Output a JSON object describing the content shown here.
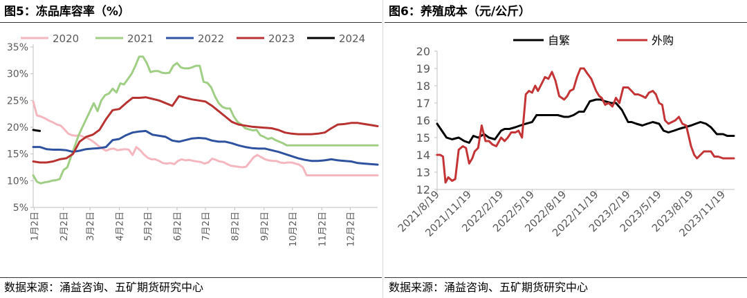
{
  "figures": [
    {
      "title": "图5：冻品库容率（%）",
      "source": "数据来源：涌益咨询、五矿期货研究中心"
    },
    {
      "title": "图6：养殖成本（元/公斤）",
      "source": "数据来源：涌益咨询、五矿期货研究中心"
    }
  ],
  "chart_data": [
    {
      "type": "line",
      "title": "图5：冻品库容率（%）",
      "x_tick_labels": [
        "1月2日",
        "2月2日",
        "3月2日",
        "4月2日",
        "5月2日",
        "6月2日",
        "7月2日",
        "8月2日",
        "9月2日",
        "10月2日",
        "11月2日",
        "12月2日"
      ],
      "y_tick_labels": [
        "5%",
        "10%",
        "15%",
        "20%",
        "25%",
        "30%",
        "35%"
      ],
      "ylim": [
        5,
        35
      ],
      "y_unit": "%",
      "grid": false,
      "legend_position": "top",
      "series": [
        {
          "name": "2020",
          "color": "#f4b6bf",
          "x": [
            1,
            5,
            9,
            13,
            18,
            22,
            26,
            30,
            34,
            38,
            42,
            46,
            50,
            54,
            58,
            62,
            66,
            70,
            74,
            78,
            82,
            86,
            90,
            94,
            98,
            102,
            106,
            110,
            114,
            118,
            122,
            126,
            130,
            134,
            138,
            142,
            146,
            150,
            154,
            158,
            162,
            166,
            170,
            174,
            178,
            182,
            186,
            190,
            194,
            198,
            202,
            206,
            210,
            214,
            218,
            222,
            226,
            230,
            234,
            238,
            242,
            246,
            250,
            254,
            258,
            262,
            266,
            270,
            274,
            278,
            282,
            286,
            290,
            294,
            298,
            302,
            306,
            310,
            314,
            318,
            322,
            326,
            330,
            334,
            338,
            342,
            346,
            350,
            354,
            358,
            362,
            365
          ],
          "values": [
            24.8,
            22.2,
            22.0,
            21.7,
            21.2,
            20.9,
            20.5,
            20.3,
            19.6,
            18.8,
            18.5,
            18.4,
            18.5,
            18.2,
            18.0,
            17.6,
            17.1,
            16.5,
            16.0,
            15.6,
            15.9,
            16.0,
            15.7,
            15.8,
            15.9,
            15.8,
            14.8,
            16.3,
            15.7,
            14.9,
            14.3,
            14.0,
            14.0,
            13.7,
            13.3,
            13.2,
            13.3,
            13.1,
            13.7,
            14.0,
            13.8,
            13.9,
            13.7,
            13.6,
            13.5,
            13.2,
            13.4,
            14.1,
            13.9,
            13.6,
            13.5,
            13.1,
            12.8,
            12.7,
            12.6,
            12.5,
            12.6,
            13.5,
            14.4,
            14.8,
            14.4,
            14.0,
            13.8,
            13.7,
            13.7,
            13.4,
            13.3,
            13.4,
            13.4,
            13.2,
            13.0,
            12.5,
            11.0,
            11.0,
            11.0,
            11.0,
            11.0,
            11.0,
            11.0,
            11.0,
            11.0,
            11.0,
            11.0,
            11.0,
            11.0,
            11.0,
            11.0,
            11.0,
            11.0,
            11.0,
            11.0,
            11.0
          ]
        },
        {
          "name": "2021",
          "color": "#9fce84",
          "x": [
            1,
            5,
            9,
            13,
            17,
            21,
            25,
            29,
            33,
            37,
            41,
            45,
            49,
            53,
            57,
            61,
            65,
            69,
            73,
            77,
            81,
            85,
            89,
            93,
            97,
            101,
            105,
            109,
            113,
            117,
            121,
            125,
            129,
            133,
            137,
            141,
            145,
            149,
            153,
            157,
            161,
            165,
            169,
            173,
            177,
            181,
            185,
            189,
            193,
            197,
            201,
            205,
            209,
            213,
            217,
            221,
            225,
            229,
            233,
            237,
            241,
            245,
            249,
            253,
            257,
            261,
            265,
            269,
            273,
            277,
            281,
            285,
            289,
            293,
            297,
            301,
            305,
            309,
            313,
            317,
            321,
            325,
            329,
            333,
            337,
            341,
            345,
            349,
            353,
            357,
            361,
            365
          ],
          "values": [
            11.0,
            9.8,
            9.5,
            9.7,
            9.8,
            10.0,
            10.1,
            10.3,
            12.0,
            12.5,
            14.5,
            16.5,
            18.5,
            20.0,
            21.5,
            23.0,
            24.5,
            23.0,
            25.0,
            26.0,
            26.3,
            27.2,
            26.5,
            28.2,
            28.0,
            29.0,
            30.0,
            31.5,
            33.2,
            33.2,
            32.0,
            30.3,
            30.5,
            30.5,
            30.2,
            30.1,
            30.2,
            31.5,
            32.0,
            31.2,
            31.0,
            31.0,
            31.2,
            31.5,
            31.5,
            28.5,
            28.3,
            27.5,
            25.8,
            24.5,
            23.8,
            23.5,
            23.5,
            22.0,
            21.0,
            20.5,
            19.8,
            19.6,
            19.4,
            19.5,
            18.5,
            18.2,
            17.8,
            18.0,
            17.6,
            17.3,
            17.0,
            16.6,
            16.6,
            16.6,
            16.6,
            16.6,
            16.6,
            16.6,
            16.6,
            16.6,
            16.6,
            16.6,
            16.6,
            16.6,
            16.6,
            16.6,
            16.6,
            16.6,
            16.6,
            16.6,
            16.6,
            16.6,
            16.6,
            16.6,
            16.6,
            16.6
          ]
        },
        {
          "name": "2022",
          "color": "#2e52a0",
          "x": [
            1,
            8,
            15,
            22,
            29,
            36,
            43,
            50,
            57,
            64,
            71,
            78,
            85,
            92,
            99,
            106,
            113,
            120,
            127,
            134,
            141,
            148,
            155,
            162,
            169,
            176,
            183,
            190,
            197,
            204,
            211,
            218,
            225,
            232,
            239,
            246,
            253,
            260,
            267,
            274,
            281,
            288,
            295,
            302,
            309,
            316,
            323,
            330,
            337,
            344,
            351,
            358,
            365
          ],
          "values": [
            16.3,
            16.3,
            15.9,
            15.8,
            15.8,
            15.7,
            15.4,
            15.6,
            15.9,
            16.0,
            16.1,
            16.3,
            17.6,
            17.8,
            18.5,
            19.0,
            19.2,
            19.3,
            18.6,
            18.4,
            18.2,
            17.5,
            17.3,
            17.6,
            17.9,
            18.0,
            17.9,
            17.5,
            17.3,
            17.3,
            17.0,
            16.6,
            16.3,
            16.1,
            16.0,
            16.0,
            15.7,
            15.4,
            15.0,
            14.6,
            14.2,
            13.9,
            13.7,
            13.7,
            13.8,
            14.0,
            13.8,
            13.7,
            13.6,
            13.3,
            13.2,
            13.1,
            13.0
          ]
        },
        {
          "name": "2023",
          "color": "#b83232",
          "x": [
            1,
            8,
            15,
            22,
            29,
            36,
            43,
            50,
            57,
            64,
            71,
            78,
            85,
            92,
            99,
            106,
            113,
            120,
            127,
            134,
            141,
            148,
            155,
            162,
            169,
            176,
            183,
            190,
            197,
            204,
            211,
            218,
            225,
            232,
            239,
            246,
            253,
            260,
            267,
            274,
            281,
            288,
            295,
            302,
            309,
            316,
            323,
            330,
            337,
            344,
            351,
            358,
            365
          ],
          "values": [
            13.6,
            13.4,
            13.4,
            13.6,
            14.0,
            14.2,
            15.0,
            17.3,
            18.2,
            18.6,
            19.5,
            21.5,
            23.2,
            23.4,
            24.5,
            25.5,
            25.5,
            25.6,
            25.3,
            25.0,
            24.5,
            24.0,
            25.8,
            25.5,
            25.2,
            25.0,
            24.8,
            24.0,
            23.0,
            22.0,
            21.0,
            20.5,
            20.3,
            20.1,
            20.0,
            19.9,
            19.8,
            19.5,
            19.0,
            18.8,
            18.7,
            18.7,
            18.7,
            18.8,
            19.0,
            19.8,
            20.5,
            20.6,
            20.8,
            20.8,
            20.6,
            20.4,
            20.2
          ]
        },
        {
          "name": "2024",
          "color": "#000000",
          "x": [
            1,
            4,
            8
          ],
          "values": [
            19.5,
            19.4,
            19.3
          ]
        }
      ]
    },
    {
      "type": "line",
      "title": "图6：养殖成本（元/公斤）",
      "x_tick_labels": [
        "2021/8/19",
        "2021/11/19",
        "2022/2/19",
        "2022/5/19",
        "2022/8/19",
        "2022/11/19",
        "2023/2/19",
        "2023/5/19",
        "2023/8/19",
        "2023/11/19"
      ],
      "y_tick_labels": [
        "12",
        "13",
        "14",
        "15",
        "16",
        "17",
        "18",
        "19",
        "20"
      ],
      "ylim": [
        12,
        20
      ],
      "grid": false,
      "legend_position": "top",
      "series": [
        {
          "name": "自繁",
          "color": "#000000",
          "x_dates": [
            "2021-08-19",
            "2021-09-05",
            "2021-09-15",
            "2021-10-01",
            "2021-10-20",
            "2021-11-05",
            "2021-11-19",
            "2021-12-01",
            "2021-12-15",
            "2022-01-01",
            "2022-01-15",
            "2022-02-01",
            "2022-02-19",
            "2022-03-01",
            "2022-03-15",
            "2022-04-01",
            "2022-04-15",
            "2022-05-01",
            "2022-05-19",
            "2022-06-01",
            "2022-06-15",
            "2022-07-01",
            "2022-07-15",
            "2022-08-01",
            "2022-08-19",
            "2022-09-01",
            "2022-09-15",
            "2022-10-01",
            "2022-10-15",
            "2022-11-01",
            "2022-11-19",
            "2022-12-01",
            "2022-12-15",
            "2023-01-01",
            "2023-01-15",
            "2023-02-01",
            "2023-02-19",
            "2023-03-01",
            "2023-03-15",
            "2023-04-01",
            "2023-04-15",
            "2023-05-01",
            "2023-05-19",
            "2023-06-01",
            "2023-06-15",
            "2023-07-01",
            "2023-07-15",
            "2023-08-01",
            "2023-08-19",
            "2023-09-01",
            "2023-09-15",
            "2023-10-01",
            "2023-10-15",
            "2023-11-01",
            "2023-11-19",
            "2023-12-01",
            "2023-12-20"
          ],
          "values": [
            15.8,
            15.3,
            15.0,
            14.9,
            15.0,
            14.8,
            14.7,
            15.1,
            15.0,
            15.2,
            15.0,
            14.9,
            15.4,
            15.5,
            15.5,
            15.6,
            15.7,
            15.8,
            15.9,
            16.3,
            16.3,
            16.3,
            16.3,
            16.3,
            16.2,
            16.2,
            16.3,
            16.5,
            16.5,
            17.1,
            17.2,
            17.2,
            17.1,
            17.0,
            17.0,
            16.6,
            15.9,
            15.9,
            15.8,
            15.7,
            15.8,
            15.9,
            15.8,
            15.4,
            15.3,
            15.4,
            15.5,
            15.6,
            15.7,
            15.8,
            15.9,
            15.8,
            15.6,
            15.2,
            15.2,
            15.1,
            15.1
          ]
        },
        {
          "name": "外购",
          "color": "#c43436",
          "x_dates": [
            "2021-08-19",
            "2021-08-28",
            "2021-09-05",
            "2021-09-12",
            "2021-09-20",
            "2021-10-01",
            "2021-10-10",
            "2021-10-20",
            "2021-11-01",
            "2021-11-10",
            "2021-11-19",
            "2021-11-28",
            "2021-12-05",
            "2021-12-15",
            "2021-12-25",
            "2022-01-05",
            "2022-01-15",
            "2022-01-25",
            "2022-02-05",
            "2022-02-19",
            "2022-03-01",
            "2022-03-10",
            "2022-03-20",
            "2022-04-01",
            "2022-04-10",
            "2022-04-20",
            "2022-05-01",
            "2022-05-10",
            "2022-05-19",
            "2022-05-28",
            "2022-06-05",
            "2022-06-15",
            "2022-06-25",
            "2022-07-05",
            "2022-07-15",
            "2022-07-25",
            "2022-08-05",
            "2022-08-19",
            "2022-08-28",
            "2022-09-05",
            "2022-09-15",
            "2022-09-25",
            "2022-10-05",
            "2022-10-15",
            "2022-10-25",
            "2022-11-05",
            "2022-11-19",
            "2022-11-28",
            "2022-12-05",
            "2022-12-15",
            "2022-12-25",
            "2023-01-05",
            "2023-01-15",
            "2023-01-25",
            "2023-02-05",
            "2023-02-19",
            "2023-03-01",
            "2023-03-10",
            "2023-03-20",
            "2023-04-01",
            "2023-04-10",
            "2023-04-20",
            "2023-05-01",
            "2023-05-10",
            "2023-05-19",
            "2023-05-28",
            "2023-06-05",
            "2023-06-15",
            "2023-06-25",
            "2023-07-05",
            "2023-07-15",
            "2023-07-25",
            "2023-08-05",
            "2023-08-19",
            "2023-08-28",
            "2023-09-05",
            "2023-09-15",
            "2023-09-25",
            "2023-10-05",
            "2023-10-15",
            "2023-10-25",
            "2023-11-05",
            "2023-11-19",
            "2023-11-28",
            "2023-12-05",
            "2023-12-20"
          ],
          "values": [
            14.0,
            14.0,
            13.9,
            12.4,
            12.7,
            12.5,
            12.6,
            14.3,
            14.5,
            14.4,
            13.5,
            13.8,
            14.2,
            14.4,
            15.7,
            14.8,
            14.8,
            14.6,
            14.5,
            15.0,
            14.8,
            15.0,
            15.3,
            15.3,
            15.4,
            15.0,
            17.5,
            17.7,
            17.6,
            18.0,
            17.7,
            18.1,
            18.5,
            18.4,
            18.8,
            18.3,
            17.4,
            17.2,
            17.4,
            17.7,
            17.8,
            18.5,
            19.0,
            19.0,
            18.7,
            18.4,
            17.7,
            17.4,
            17.3,
            16.9,
            17.0,
            16.8,
            17.3,
            17.0,
            17.9,
            17.9,
            17.7,
            17.5,
            17.5,
            17.4,
            17.3,
            17.6,
            17.7,
            17.5,
            17.0,
            16.9,
            16.0,
            15.8,
            15.9,
            16.0,
            16.2,
            15.8,
            15.7,
            14.5,
            14.0,
            13.8,
            14.0,
            14.2,
            14.2,
            14.2,
            13.9,
            13.9,
            13.8,
            13.8,
            13.8,
            13.8
          ]
        }
      ]
    }
  ]
}
